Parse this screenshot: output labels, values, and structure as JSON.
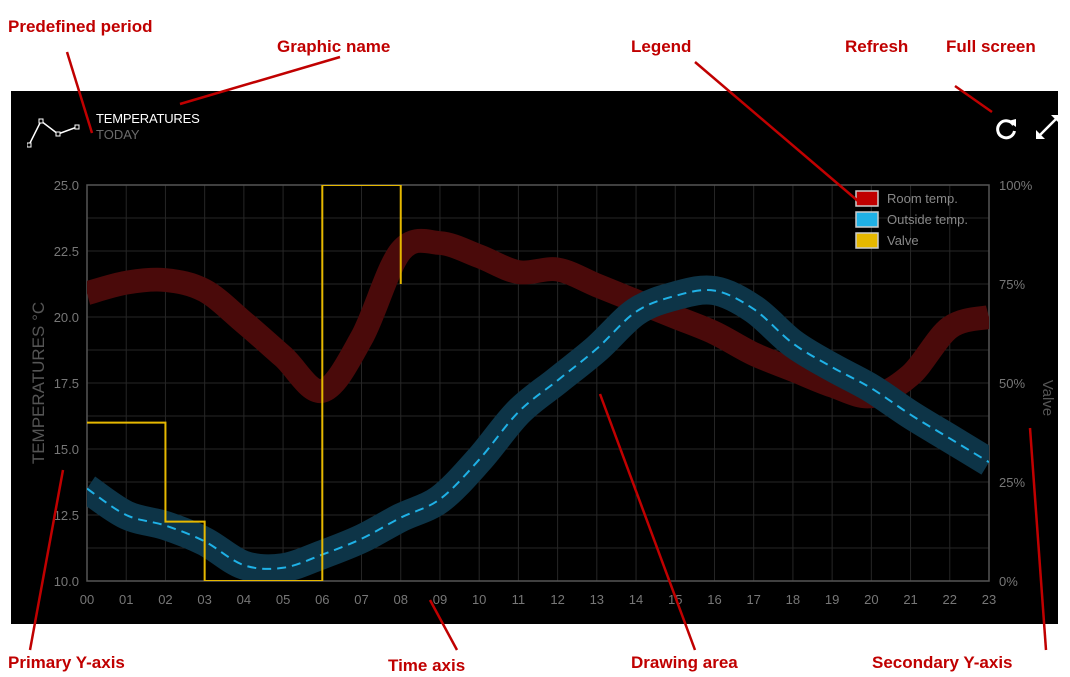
{
  "annotations": {
    "predefined_period": "Predefined period",
    "graphic_name": "Graphic name",
    "legend": "Legend",
    "refresh": "Refresh",
    "full_screen": "Full screen",
    "primary_y_axis": "Primary Y-axis",
    "time_axis": "Time axis",
    "drawing_area": "Drawing area",
    "secondary_y_axis": "Secondary Y-axis"
  },
  "widget": {
    "title": "TEMPERATURES",
    "period": "TODAY",
    "refresh_icon": "refresh-icon",
    "fullscreen_icon": "fullscreen-icon",
    "chart_icon": "line-chart-icon"
  },
  "chart_data": {
    "type": "line",
    "ylabel": "TEMPERATURES °C",
    "y2label": "Valve",
    "ylim": [
      10.0,
      25.0
    ],
    "y2lim": [
      0,
      100
    ],
    "yticks": [
      "10.0",
      "12.5",
      "15.0",
      "17.5",
      "20.0",
      "22.5",
      "25.0"
    ],
    "y2ticks": [
      "0%",
      "25%",
      "50%",
      "75%",
      "100%"
    ],
    "x": [
      "00",
      "01",
      "02",
      "03",
      "04",
      "05",
      "06",
      "07",
      "08",
      "09",
      "10",
      "11",
      "12",
      "13",
      "14",
      "15",
      "16",
      "17",
      "18",
      "19",
      "20",
      "21",
      "22",
      "23"
    ],
    "grid": true,
    "legend_position": "top-right",
    "series": [
      {
        "name": "Room temp.",
        "color": "#c00000",
        "style": "band",
        "values": [
          20.9,
          21.3,
          21.4,
          21.0,
          19.8,
          18.5,
          17.2,
          19.2,
          22.5,
          22.8,
          22.3,
          21.7,
          21.8,
          21.2,
          20.6,
          20.0,
          19.4,
          18.6,
          18.0,
          17.4,
          17.0,
          17.8,
          19.6,
          20.0
        ],
        "band_halfwidth": 0.45
      },
      {
        "name": "Outside temp.",
        "color": "#1fb1e6",
        "style": "band-dashed",
        "values": [
          13.5,
          12.5,
          12.1,
          11.5,
          10.6,
          10.5,
          11.0,
          11.6,
          12.4,
          13.1,
          14.6,
          16.4,
          17.6,
          18.8,
          20.2,
          20.8,
          21.0,
          20.3,
          19.0,
          18.1,
          17.3,
          16.3,
          15.4,
          14.5
        ],
        "band_halfwidth": 0.55
      },
      {
        "name": "Valve",
        "color": "#e6b800",
        "style": "step",
        "axis": "secondary",
        "values": [
          [
            0,
            40
          ],
          [
            2,
            40
          ],
          [
            2,
            15
          ],
          [
            3,
            15
          ],
          [
            3,
            0
          ],
          [
            6,
            0
          ],
          [
            6,
            100
          ],
          [
            8,
            100
          ],
          [
            8,
            75
          ]
        ]
      }
    ]
  }
}
